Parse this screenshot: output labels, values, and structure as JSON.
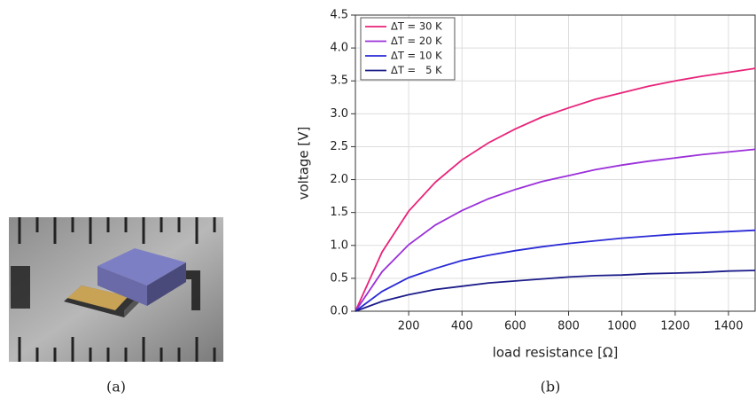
{
  "chart_data": {
    "type": "line",
    "xlabel": "load resistance [Ω]",
    "ylabel": "voltage [V]",
    "x": [
      0,
      100,
      200,
      300,
      400,
      500,
      600,
      700,
      800,
      900,
      1000,
      1100,
      1200,
      1300,
      1400,
      1500
    ],
    "series": [
      {
        "name": "ΔT = 30 K",
        "color": "#e8237a",
        "values": [
          0,
          0.9,
          1.52,
          1.96,
          2.3,
          2.56,
          2.77,
          2.95,
          3.09,
          3.22,
          3.32,
          3.42,
          3.5,
          3.57,
          3.63,
          3.69
        ]
      },
      {
        "name": "ΔT = 20 K",
        "color": "#9b30d9",
        "values": [
          0,
          0.6,
          1.01,
          1.31,
          1.53,
          1.71,
          1.85,
          1.97,
          2.06,
          2.15,
          2.22,
          2.28,
          2.33,
          2.38,
          2.42,
          2.46
        ]
      },
      {
        "name": "ΔT = 10 K",
        "color": "#2a2ad6",
        "values": [
          0,
          0.3,
          0.51,
          0.65,
          0.77,
          0.85,
          0.92,
          0.98,
          1.03,
          1.07,
          1.11,
          1.14,
          1.17,
          1.19,
          1.21,
          1.23
        ]
      },
      {
        "name": "ΔT =   5 K",
        "color": "#1c1c8a",
        "values": [
          0,
          0.15,
          0.25,
          0.33,
          0.38,
          0.43,
          0.46,
          0.49,
          0.52,
          0.54,
          0.55,
          0.57,
          0.58,
          0.59,
          0.61,
          0.62
        ]
      }
    ],
    "xlim": [
      0,
      1500
    ],
    "xticks": [
      200,
      400,
      600,
      800,
      1000,
      1200,
      1400
    ],
    "ylim": [
      0,
      4.5
    ],
    "yticks": [
      {
        "value": 0,
        "label": "0.0"
      },
      0.5,
      {
        "value": 1,
        "label": "1.0"
      },
      1.5,
      {
        "value": 2,
        "label": "2.0"
      },
      2.5,
      {
        "value": 3,
        "label": "3.0"
      },
      3.5,
      {
        "value": 4,
        "label": "4.0"
      },
      4.5
    ],
    "grid": true,
    "legend": "upper left"
  },
  "captions": [
    "(a)",
    "(b)"
  ]
}
